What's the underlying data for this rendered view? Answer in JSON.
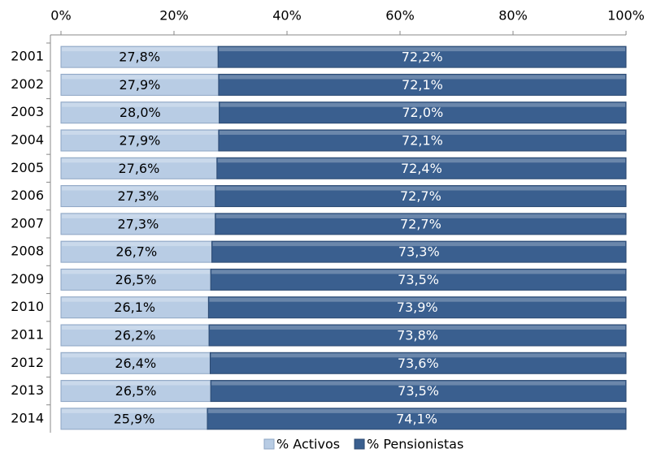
{
  "chart_data": {
    "type": "stacked_bar_horizontal",
    "categories": [
      "2001",
      "2002",
      "2003",
      "2004",
      "2005",
      "2006",
      "2007",
      "2008",
      "2009",
      "2010",
      "2011",
      "2012",
      "2013",
      "2014"
    ],
    "series": [
      {
        "name": "% Activos",
        "color": "#b8cce4",
        "values": [
          27.8,
          27.9,
          28.0,
          27.9,
          27.6,
          27.3,
          27.3,
          26.7,
          26.5,
          26.1,
          26.2,
          26.4,
          26.5,
          25.9
        ],
        "value_labels": [
          "27,8%",
          "27,9%",
          "28,0%",
          "27,9%",
          "27,6%",
          "27,3%",
          "27,3%",
          "26,7%",
          "26,5%",
          "26,1%",
          "26,2%",
          "26,4%",
          "26,5%",
          "25,9%"
        ]
      },
      {
        "name": "% Pensionistas",
        "color": "#3a5f8f",
        "values": [
          72.2,
          72.1,
          72.0,
          72.1,
          72.4,
          72.7,
          72.7,
          73.3,
          73.5,
          73.9,
          73.8,
          73.6,
          73.5,
          74.1
        ],
        "value_labels": [
          "72,2%",
          "72,1%",
          "72,0%",
          "72,1%",
          "72,4%",
          "72,7%",
          "72,7%",
          "73,3%",
          "73,5%",
          "73,9%",
          "73,8%",
          "73,6%",
          "73,5%",
          "74,1%"
        ]
      }
    ],
    "xlim": [
      0,
      100
    ],
    "xticks": [
      {
        "value": 0,
        "label": "0%"
      },
      {
        "value": 20,
        "label": "20%"
      },
      {
        "value": 40,
        "label": "40%"
      },
      {
        "value": 60,
        "label": "60%"
      },
      {
        "value": 80,
        "label": "80%"
      },
      {
        "value": 100,
        "label": "100%"
      }
    ],
    "legend": "bottom"
  }
}
